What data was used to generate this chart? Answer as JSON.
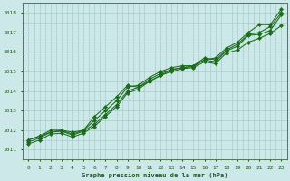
{
  "bg_color": "#cce8e8",
  "grid_color": "#aacccc",
  "line_color": "#1a6b1a",
  "marker_color": "#1a6b1a",
  "text_color": "#1a5c1a",
  "xlabel": "Graphe pression niveau de la mer (hPa)",
  "ylim": [
    1010.5,
    1018.5
  ],
  "xlim": [
    -0.5,
    23.5
  ],
  "yticks": [
    1011,
    1012,
    1013,
    1014,
    1015,
    1016,
    1017,
    1018
  ],
  "xticks": [
    0,
    1,
    2,
    3,
    4,
    5,
    6,
    7,
    8,
    9,
    10,
    11,
    12,
    13,
    14,
    15,
    16,
    17,
    18,
    19,
    20,
    21,
    22,
    23
  ],
  "series": [
    [
      1011.5,
      1011.7,
      1011.9,
      1012.0,
      1011.9,
      1012.0,
      1012.7,
      1013.2,
      1013.7,
      1014.3,
      1014.2,
      1014.5,
      1014.8,
      1015.1,
      1015.2,
      1015.3,
      1015.6,
      1015.7,
      1016.2,
      1016.5,
      1017.0,
      1017.4,
      1017.4,
      1018.2
    ],
    [
      1011.5,
      1011.7,
      1012.0,
      1012.0,
      1011.8,
      1012.0,
      1012.5,
      1013.0,
      1013.5,
      1014.2,
      1014.3,
      1014.7,
      1015.0,
      1015.2,
      1015.3,
      1015.3,
      1015.7,
      1015.6,
      1016.1,
      1016.4,
      1016.9,
      1017.0,
      1017.3,
      1018.0
    ],
    [
      1011.4,
      1011.6,
      1011.9,
      1011.95,
      1011.75,
      1011.95,
      1012.3,
      1012.8,
      1013.3,
      1014.0,
      1014.2,
      1014.6,
      1014.9,
      1015.1,
      1015.2,
      1015.25,
      1015.6,
      1015.5,
      1016.05,
      1016.3,
      1016.85,
      1016.9,
      1017.1,
      1017.9
    ],
    [
      1011.3,
      1011.5,
      1011.8,
      1011.85,
      1011.65,
      1011.85,
      1012.2,
      1012.7,
      1013.2,
      1013.9,
      1014.1,
      1014.5,
      1014.8,
      1015.0,
      1015.15,
      1015.2,
      1015.5,
      1015.4,
      1015.95,
      1016.1,
      1016.5,
      1016.7,
      1016.95,
      1017.35
    ]
  ]
}
